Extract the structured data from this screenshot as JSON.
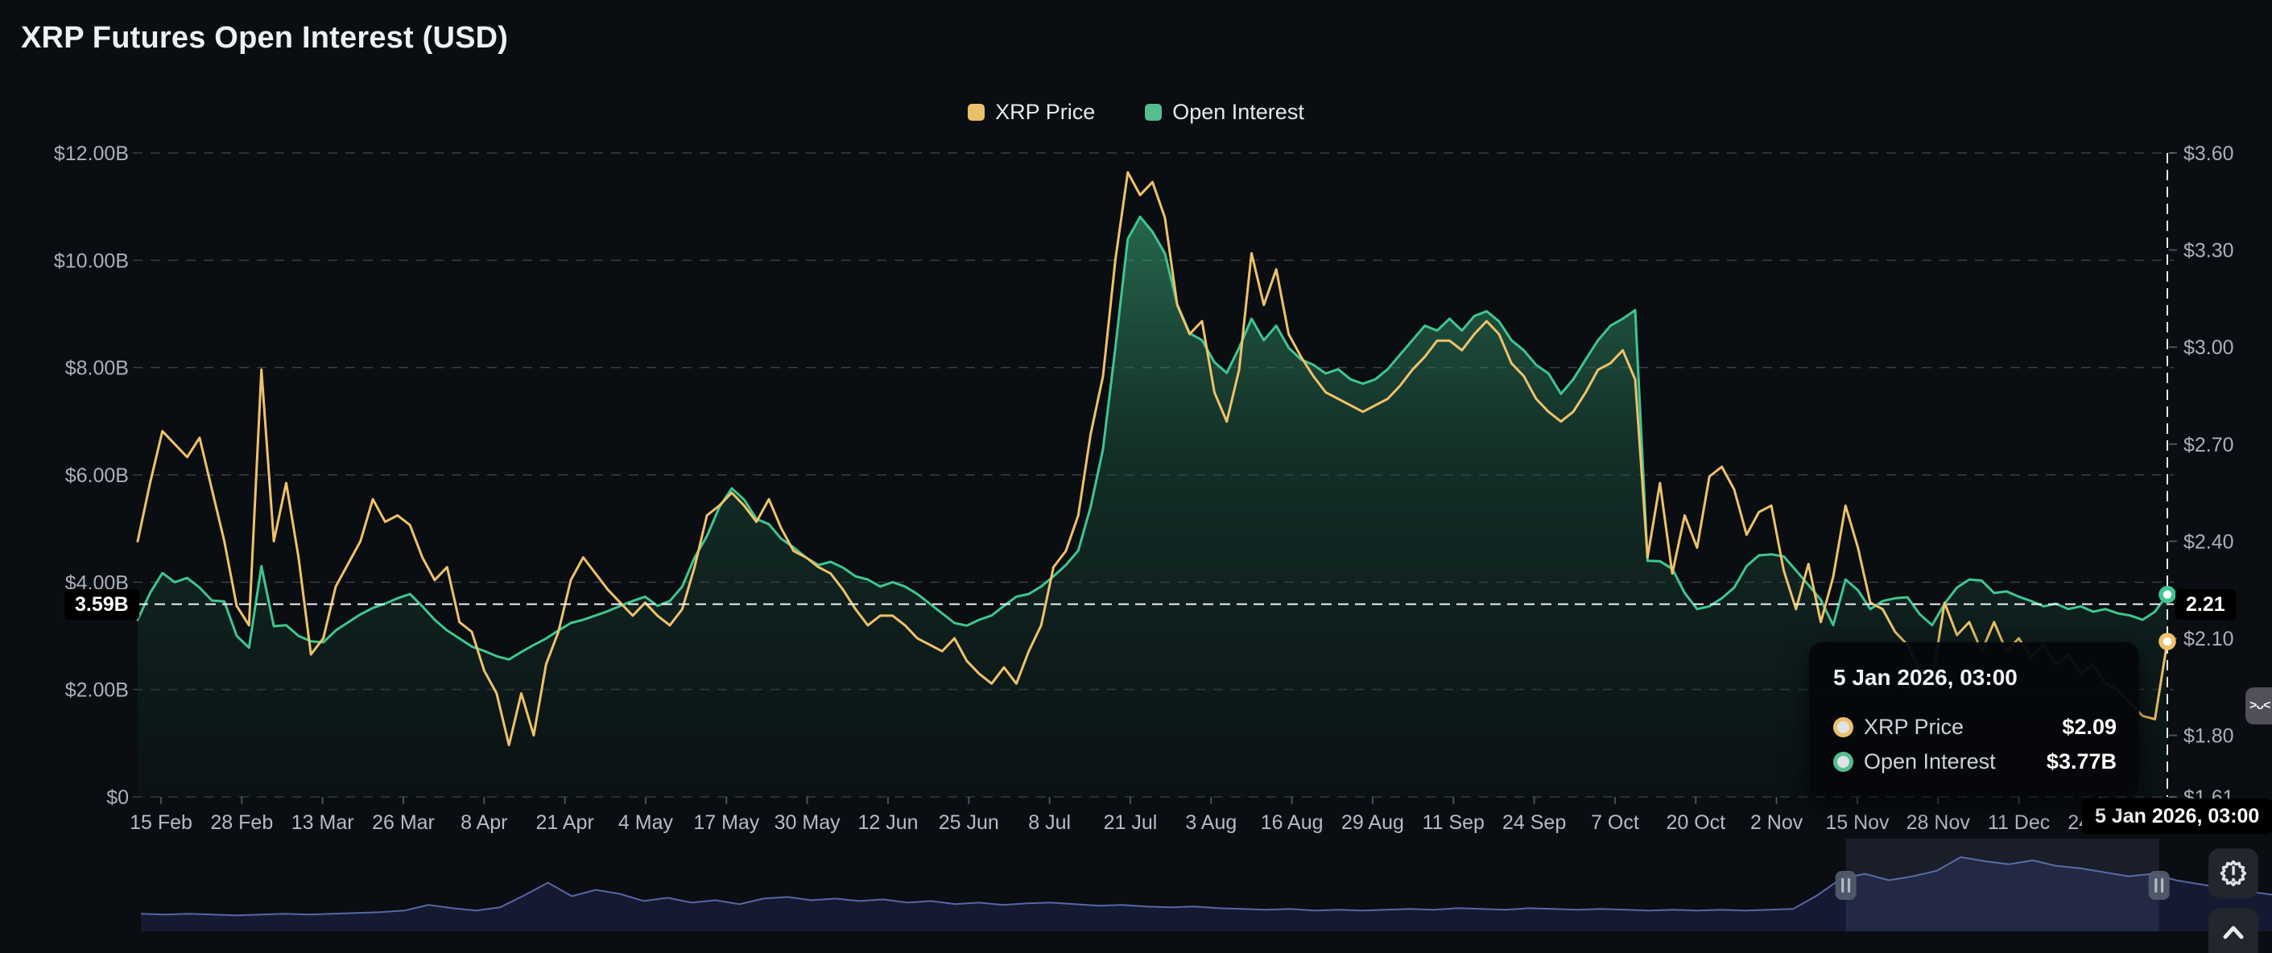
{
  "title": "XRP Futures Open Interest (USD)",
  "legend": [
    {
      "label": "XRP Price",
      "color": "#e9c16a"
    },
    {
      "label": "Open Interest",
      "color": "#55be8c"
    }
  ],
  "colors": {
    "background": "#0a0d12",
    "price_line": "#efc269",
    "oi_line": "#3fc690",
    "grid": "rgba(196,205,215,0.26)",
    "axis_text": "#a9b1bb",
    "xtick_text": "#b6bcc5",
    "crosshair": "#eef1f4",
    "nav_line": "#5767a3",
    "nav_fill": "rgba(23,29,56,0.85)",
    "nav_selection": "rgba(130,150,200,0.13)"
  },
  "chart_data": {
    "type": "area",
    "title": "XRP Futures Open Interest (USD)",
    "legend_position": "top-center",
    "grid": "dashed-horizontal",
    "x_ticks": [
      "15 Feb",
      "28 Feb",
      "13 Mar",
      "26 Mar",
      "8 Apr",
      "21 Apr",
      "4 May",
      "17 May",
      "30 May",
      "12 Jun",
      "25 Jun",
      "8 Jul",
      "21 Jul",
      "3 Aug",
      "16 Aug",
      "29 Aug",
      "11 Sep",
      "24 Sep",
      "7 Oct",
      "20 Oct",
      "2 Nov",
      "15 Nov",
      "28 Nov",
      "11 Dec",
      "24 Dec"
    ],
    "left_axis": {
      "title": "Open Interest",
      "unit": "USD",
      "min": 0,
      "max": 12000000000,
      "tick_labels": [
        "$12.00B",
        "$10.00B",
        "$8.00B",
        "$6.00B",
        "$4.00B",
        "$2.00B",
        "$0"
      ],
      "tick_values": [
        12,
        10,
        8,
        6,
        4,
        2,
        0
      ]
    },
    "right_axis": {
      "title": "XRP Price",
      "unit": "USD",
      "min": 1.61,
      "max": 3.6,
      "tick_labels": [
        "$3.60",
        "$3.30",
        "$3.00",
        "$2.70",
        "$2.40",
        "$2.10",
        "$1.80",
        "$1.61"
      ],
      "tick_values": [
        3.6,
        3.3,
        3.0,
        2.7,
        2.4,
        2.1,
        1.8,
        1.61
      ]
    },
    "series": [
      {
        "name": "XRP Price",
        "axis": "right",
        "type": "line",
        "color": "#efc269",
        "unit": "$",
        "values": [
          2.4,
          2.58,
          2.74,
          2.7,
          2.66,
          2.72,
          2.56,
          2.4,
          2.2,
          2.14,
          2.93,
          2.4,
          2.58,
          2.35,
          2.05,
          2.1,
          2.26,
          2.33,
          2.4,
          2.53,
          2.46,
          2.48,
          2.45,
          2.35,
          2.28,
          2.32,
          2.15,
          2.12,
          2.0,
          1.93,
          1.77,
          1.93,
          1.8,
          2.02,
          2.12,
          2.28,
          2.35,
          2.3,
          2.25,
          2.21,
          2.17,
          2.21,
          2.17,
          2.14,
          2.19,
          2.32,
          2.48,
          2.51,
          2.55,
          2.51,
          2.46,
          2.53,
          2.44,
          2.37,
          2.35,
          2.32,
          2.3,
          2.25,
          2.19,
          2.14,
          2.17,
          2.17,
          2.14,
          2.1,
          2.08,
          2.06,
          2.1,
          2.03,
          1.99,
          1.96,
          2.01,
          1.96,
          2.06,
          2.14,
          2.32,
          2.37,
          2.48,
          2.73,
          2.91,
          3.27,
          3.54,
          3.47,
          3.51,
          3.4,
          3.13,
          3.04,
          3.08,
          2.86,
          2.77,
          2.93,
          3.29,
          3.13,
          3.24,
          3.04,
          2.97,
          2.91,
          2.86,
          2.84,
          2.82,
          2.8,
          2.82,
          2.84,
          2.88,
          2.93,
          2.97,
          3.02,
          3.02,
          2.99,
          3.04,
          3.08,
          3.04,
          2.95,
          2.91,
          2.84,
          2.8,
          2.77,
          2.8,
          2.86,
          2.93,
          2.95,
          2.99,
          2.9,
          2.35,
          2.58,
          2.3,
          2.48,
          2.38,
          2.6,
          2.63,
          2.56,
          2.42,
          2.49,
          2.51,
          2.31,
          2.19,
          2.33,
          2.15,
          2.29,
          2.51,
          2.38,
          2.21,
          2.19,
          2.12,
          2.08,
          2.0,
          1.97,
          2.21,
          2.11,
          2.15,
          2.06,
          2.15,
          2.06,
          2.1,
          2.04,
          2.08,
          2.02,
          2.05,
          1.99,
          2.02,
          1.96,
          1.94,
          1.9,
          1.86,
          1.85,
          2.09
        ]
      },
      {
        "name": "Open Interest",
        "axis": "left",
        "type": "area",
        "color": "#3fc690",
        "unit": "$B",
        "values": [
          3.3,
          3.8,
          4.17,
          4.0,
          4.08,
          3.9,
          3.66,
          3.64,
          3.0,
          2.78,
          4.3,
          3.18,
          3.2,
          3.0,
          2.9,
          2.88,
          3.1,
          3.25,
          3.4,
          3.52,
          3.6,
          3.7,
          3.78,
          3.55,
          3.3,
          3.1,
          2.95,
          2.8,
          2.72,
          2.62,
          2.56,
          2.7,
          2.83,
          2.95,
          3.1,
          3.24,
          3.3,
          3.38,
          3.46,
          3.56,
          3.65,
          3.73,
          3.56,
          3.65,
          3.92,
          4.46,
          4.86,
          5.4,
          5.75,
          5.54,
          5.18,
          5.08,
          4.81,
          4.65,
          4.46,
          4.32,
          4.38,
          4.27,
          4.11,
          4.05,
          3.92,
          4.0,
          3.92,
          3.78,
          3.6,
          3.42,
          3.24,
          3.19,
          3.3,
          3.38,
          3.56,
          3.73,
          3.78,
          3.92,
          4.11,
          4.32,
          4.59,
          5.4,
          6.48,
          8.37,
          10.4,
          10.81,
          10.53,
          10.13,
          9.18,
          8.64,
          8.51,
          8.1,
          7.9,
          8.37,
          8.91,
          8.51,
          8.78,
          8.37,
          8.15,
          8.05,
          7.89,
          7.97,
          7.78,
          7.7,
          7.78,
          7.97,
          8.24,
          8.51,
          8.78,
          8.69,
          8.91,
          8.69,
          8.96,
          9.05,
          8.86,
          8.51,
          8.32,
          8.05,
          7.89,
          7.51,
          7.78,
          8.15,
          8.51,
          8.78,
          8.91,
          9.07,
          4.4,
          4.39,
          4.25,
          3.8,
          3.5,
          3.55,
          3.7,
          3.9,
          4.3,
          4.5,
          4.52,
          4.48,
          4.22,
          3.95,
          3.67,
          3.2,
          4.05,
          3.85,
          3.5,
          3.65,
          3.7,
          3.72,
          3.4,
          3.2,
          3.6,
          3.9,
          4.05,
          4.03,
          3.8,
          3.83,
          3.73,
          3.65,
          3.55,
          3.6,
          3.5,
          3.55,
          3.45,
          3.5,
          3.42,
          3.38,
          3.3,
          3.45,
          3.77
        ]
      }
    ],
    "navigator": {
      "description": "full-history minimap with brush selection",
      "normalized_values": [
        0.22,
        0.21,
        0.22,
        0.21,
        0.2,
        0.21,
        0.22,
        0.21,
        0.22,
        0.23,
        0.24,
        0.26,
        0.33,
        0.29,
        0.26,
        0.3,
        0.45,
        0.61,
        0.44,
        0.52,
        0.47,
        0.38,
        0.42,
        0.36,
        0.39,
        0.34,
        0.41,
        0.43,
        0.39,
        0.41,
        0.38,
        0.4,
        0.36,
        0.38,
        0.34,
        0.36,
        0.33,
        0.35,
        0.36,
        0.34,
        0.32,
        0.33,
        0.31,
        0.3,
        0.31,
        0.29,
        0.28,
        0.27,
        0.28,
        0.26,
        0.27,
        0.26,
        0.27,
        0.28,
        0.27,
        0.29,
        0.28,
        0.27,
        0.29,
        0.28,
        0.27,
        0.28,
        0.27,
        0.26,
        0.27,
        0.26,
        0.27,
        0.26,
        0.27,
        0.28,
        0.45,
        0.66,
        0.72,
        0.64,
        0.69,
        0.76,
        0.93,
        0.88,
        0.84,
        0.89,
        0.82,
        0.79,
        0.74,
        0.69,
        0.72,
        0.64,
        0.59,
        0.54,
        0.5,
        0.46
      ],
      "selection_start_frac": 0.8,
      "selection_end_frac": 0.947
    }
  },
  "crosshair": {
    "oi_axis_label": "3.59B",
    "price_axis_label": "2.21",
    "date_label": "5 Jan 2026, 03:00",
    "oi_value_b": 3.59
  },
  "tooltip": {
    "date": "5 Jan 2026, 03:00",
    "rows": [
      {
        "label": "XRP Price",
        "value": "$2.09",
        "color": "#e9c16a"
      },
      {
        "label": "Open Interest",
        "value": "$3.77B",
        "color": "#55be8c"
      }
    ]
  },
  "icons": {
    "chat_face": ">ᴗ<"
  }
}
